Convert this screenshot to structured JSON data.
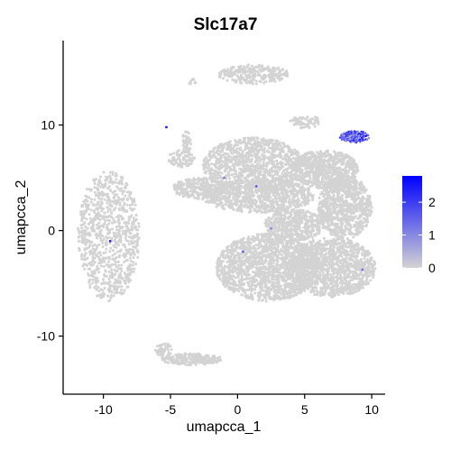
{
  "chart_data": {
    "type": "scatter",
    "subtype": "umap-feature-plot",
    "title": "Slc17a7",
    "xlabel": "umapcca_1",
    "ylabel": "umapcca_2",
    "xlim": [
      -13,
      11
    ],
    "ylim": [
      -15.5,
      18
    ],
    "xticks": [
      -10,
      -5,
      0,
      5,
      10
    ],
    "yticks": [
      -10,
      0,
      10
    ],
    "xtick_labels": [
      "-10",
      "-5",
      "0",
      "5",
      "10"
    ],
    "ytick_labels": [
      "-10",
      "0",
      "10"
    ],
    "colors": {
      "low": "#d3d3d3",
      "high": "#0000ff"
    },
    "legend": {
      "position": "right",
      "range": [
        0,
        2.8
      ],
      "ticks": [
        0,
        1,
        2
      ],
      "tick_labels": [
        "0",
        "1",
        "2"
      ]
    },
    "clusters": [
      {
        "name": "top-small",
        "cx": 1.2,
        "cy": 14.8,
        "rx": 2.6,
        "ry": 0.9,
        "n": 260
      },
      {
        "name": "top-left-dot",
        "cx": -3.3,
        "cy": 14.1,
        "rx": 0.3,
        "ry": 0.4,
        "n": 12
      },
      {
        "name": "left-island",
        "cx": -9.6,
        "cy": -0.5,
        "rx": 2.3,
        "ry": 6.2,
        "n": 900
      },
      {
        "name": "upper-arm",
        "cx": -4.2,
        "cy": 6.8,
        "rx": 1.0,
        "ry": 0.8,
        "n": 90
      },
      {
        "name": "thin-streak",
        "cx": -3.8,
        "cy": 8.4,
        "rx": 0.35,
        "ry": 1.1,
        "n": 40
      },
      {
        "name": "central-upper",
        "cx": 1.2,
        "cy": 6.2,
        "rx": 3.8,
        "ry": 2.6,
        "n": 1100
      },
      {
        "name": "central-mid",
        "cx": 1.5,
        "cy": 3.3,
        "rx": 4.2,
        "ry": 1.6,
        "n": 900
      },
      {
        "name": "mid-left-arm",
        "cx": -2.8,
        "cy": 4.0,
        "rx": 2.0,
        "ry": 1.0,
        "n": 300
      },
      {
        "name": "top-right-mass",
        "cx": 6.5,
        "cy": 5.8,
        "rx": 2.5,
        "ry": 1.8,
        "n": 700
      },
      {
        "name": "right-middle",
        "cx": 8.0,
        "cy": 2.2,
        "rx": 2.0,
        "ry": 3.0,
        "n": 900
      },
      {
        "name": "right-lower",
        "cx": 7.0,
        "cy": -3.5,
        "rx": 3.3,
        "ry": 2.8,
        "n": 1300
      },
      {
        "name": "center-lower",
        "cx": 2.2,
        "cy": -3.5,
        "rx": 3.8,
        "ry": 3.2,
        "n": 1600
      },
      {
        "name": "mid-connector",
        "cx": 4.2,
        "cy": 0.5,
        "rx": 2.2,
        "ry": 1.5,
        "n": 500
      },
      {
        "name": "bottom-strip",
        "cx": -3.4,
        "cy": -12.2,
        "rx": 2.3,
        "ry": 0.55,
        "n": 220
      },
      {
        "name": "bottom-tail",
        "cx": -5.5,
        "cy": -11.3,
        "rx": 0.7,
        "ry": 0.6,
        "n": 50
      },
      {
        "name": "top-right-blob",
        "cx": 5.0,
        "cy": 10.3,
        "rx": 1.2,
        "ry": 0.6,
        "n": 70
      },
      {
        "name": "expressing-cluster",
        "cx": 8.7,
        "cy": 8.9,
        "rx": 1.1,
        "ry": 0.55,
        "n": 260,
        "expressing": true
      }
    ],
    "expressing_points": [
      {
        "x": -5.3,
        "y": 9.8,
        "value": 2.4
      },
      {
        "x": -9.5,
        "y": -1.0,
        "value": 2.2
      },
      {
        "x": 1.4,
        "y": 4.2,
        "value": 1.6
      },
      {
        "x": -1.0,
        "y": 5.0,
        "value": 1.2
      },
      {
        "x": 0.4,
        "y": -2.0,
        "value": 1.5
      },
      {
        "x": 2.5,
        "y": 0.2,
        "value": 1.0
      },
      {
        "x": 9.3,
        "y": -3.7,
        "value": 1.3
      }
    ]
  }
}
